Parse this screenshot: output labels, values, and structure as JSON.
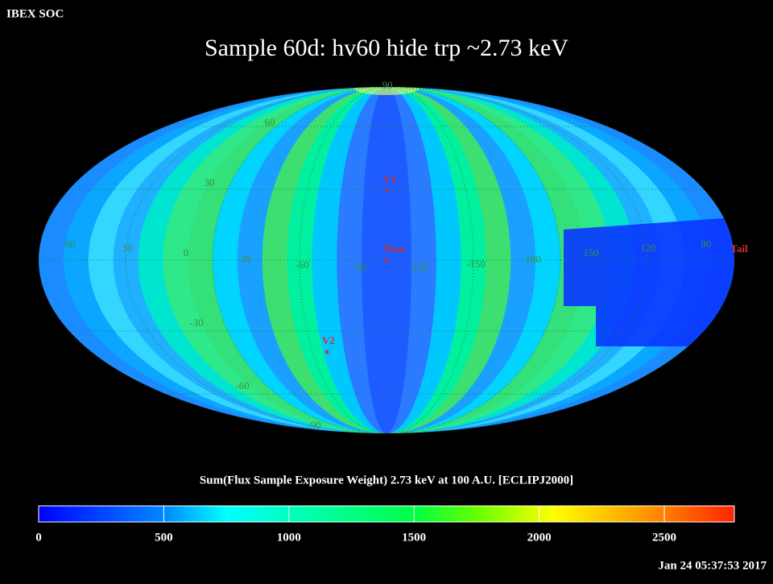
{
  "header": {
    "source": "IBEX SOC",
    "title": "Sample 60d: hv60 hide trp ~2.73 keV",
    "timestamp": "Jan 24 05:37:53 2017"
  },
  "map": {
    "grid_labels": [
      "90",
      "60",
      "30",
      "60",
      "30",
      "0",
      "-30",
      "-60",
      "-90",
      "-120",
      "-150",
      "180",
      "150",
      "120",
      "90",
      "-30",
      "-60",
      "-90"
    ],
    "markers": [
      "V1",
      "Nose",
      "V2",
      "Tail"
    ]
  },
  "colorbar": {
    "label": "Sum(Flux Sample Exposure Weight)  2.73 keV at 100 A.U. [ECLIPJ2000]",
    "range": [
      0,
      2780
    ],
    "ticks": [
      0,
      500,
      1000,
      1500,
      2000,
      2500
    ]
  }
}
